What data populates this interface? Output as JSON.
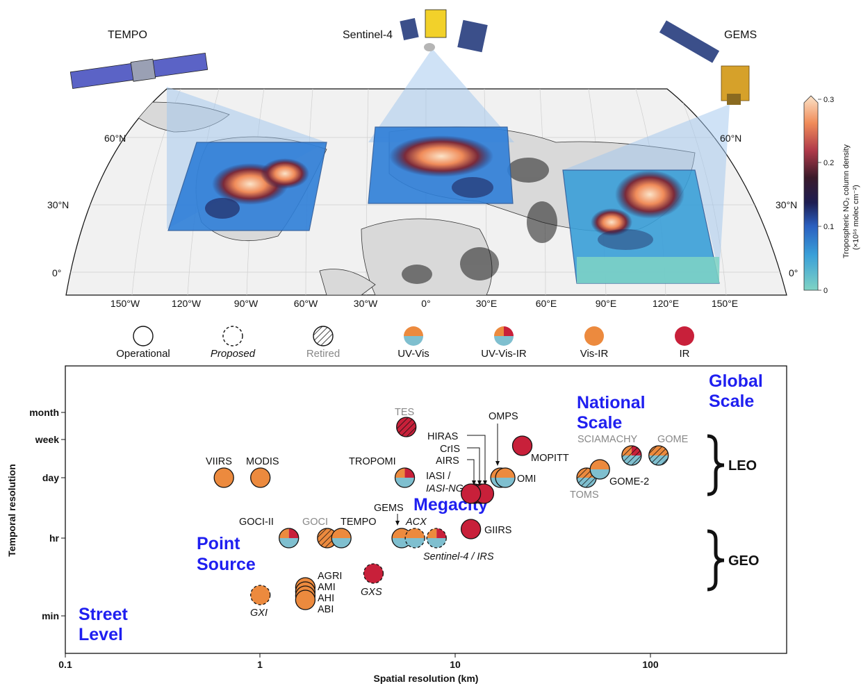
{
  "map": {
    "satellites": [
      {
        "name": "TEMPO"
      },
      {
        "name": "Sentinel-4"
      },
      {
        "name": "GEMS"
      }
    ],
    "lat_labels": [
      "60°N",
      "30°N",
      "0°"
    ],
    "lon_labels": [
      "150°W",
      "120°W",
      "90°W",
      "60°W",
      "30°W",
      "0°",
      "30°E",
      "60°E",
      "90°E",
      "120°E",
      "150°E"
    ],
    "colorbar": {
      "title": "Tropospheric NO₂ column density",
      "units": "(×10¹⁶ molec cm⁻²)",
      "ticks": [
        "0.3",
        "0.2",
        "0.1",
        "0"
      ],
      "colors": [
        "#7fd3c4",
        "#2f7fd8",
        "#1a1a5a",
        "#1a1a1a",
        "#b03a4a",
        "#f08c5a",
        "#fbe3c8"
      ]
    }
  },
  "legend": [
    {
      "label": "Operational",
      "style": "solid"
    },
    {
      "label": "Proposed",
      "style": "dashed"
    },
    {
      "label": "Retired",
      "style": "hatched"
    },
    {
      "label": "UV-Vis",
      "style": "uvvis"
    },
    {
      "label": "UV-Vis-IR",
      "style": "uvvisir"
    },
    {
      "label": "Vis-IR",
      "style": "visir"
    },
    {
      "label": "IR",
      "style": "ir"
    }
  ],
  "colors": {
    "orange": "#ec8a3e",
    "blue": "#7fbfcf",
    "red": "#c8203a",
    "scale_text": "#1f1ff0",
    "retired_text": "#888888"
  },
  "chart_data": {
    "type": "scatter",
    "xlabel": "Spatial resolution (km)",
    "ylabel": "Temporal resolution",
    "x_scale": "log",
    "xlim": [
      0.1,
      500
    ],
    "x_ticks": [
      "0.1",
      "1",
      "10",
      "100"
    ],
    "y_ticks": [
      "month",
      "week",
      "day",
      "hr",
      "min"
    ],
    "points": [
      {
        "name": "VIIRS",
        "x": 0.65,
        "y": "day",
        "band": "visir",
        "status": "operational"
      },
      {
        "name": "MODIS",
        "x": 1.0,
        "y": "day",
        "band": "visir",
        "status": "operational"
      },
      {
        "name": "TROPOMI",
        "x": 5.5,
        "y": "day",
        "band": "uvvisir",
        "status": "operational"
      },
      {
        "name": "TES",
        "x": 5.6,
        "y": "between month and week",
        "band": "ir",
        "status": "retired"
      },
      {
        "name": "HIRAS",
        "x": 12.5,
        "y": "day",
        "band": "ir",
        "status": "operational"
      },
      {
        "name": "CrIS",
        "x": 13.5,
        "y": "day",
        "band": "ir",
        "status": "operational"
      },
      {
        "name": "AIRS",
        "x": 14,
        "y": "day",
        "band": "ir",
        "status": "operational"
      },
      {
        "name": "IASI / IASI-NG",
        "x": 12,
        "y": "day",
        "band": "ir",
        "status": "operational"
      },
      {
        "name": "OMPS",
        "x": 17,
        "y": "day",
        "band": "uvvis",
        "status": "operational"
      },
      {
        "name": "OMI",
        "x": 18,
        "y": "day",
        "band": "uvvis",
        "status": "operational"
      },
      {
        "name": "MOPITT",
        "x": 22,
        "y": "week",
        "band": "ir",
        "status": "operational"
      },
      {
        "name": "TOMS",
        "x": 47,
        "y": "day",
        "band": "uvvis",
        "status": "retired"
      },
      {
        "name": "GOME-2",
        "x": 55,
        "y": "day",
        "band": "uvvis",
        "status": "operational"
      },
      {
        "name": "SCIAMACHY",
        "x": 80,
        "y": "week",
        "band": "uvvisir",
        "status": "retired"
      },
      {
        "name": "GOME",
        "x": 110,
        "y": "week",
        "band": "uvvis",
        "status": "retired"
      },
      {
        "name": "GOCI-II",
        "x": 1.4,
        "y": "hr",
        "band": "uvvisir",
        "status": "operational"
      },
      {
        "name": "GOCI",
        "x": 2.2,
        "y": "hr",
        "band": "visir",
        "status": "retired"
      },
      {
        "name": "TEMPO",
        "x": 2.6,
        "y": "hr",
        "band": "uvvis",
        "status": "operational"
      },
      {
        "name": "GEMS",
        "x": 5.3,
        "y": "hr",
        "band": "uvvis",
        "status": "operational"
      },
      {
        "name": "ACX",
        "x": 6.2,
        "y": "hr",
        "band": "uvvis",
        "status": "proposed"
      },
      {
        "name": "Sentinel-4 / IRS",
        "x": 8,
        "y": "hr",
        "band": "uvvisir",
        "status": "proposed"
      },
      {
        "name": "GIIRS",
        "x": 12,
        "y": "hr",
        "band": "ir",
        "status": "operational"
      },
      {
        "name": "GXS",
        "x": 3.8,
        "y": "between hr and min",
        "band": "ir",
        "status": "proposed"
      },
      {
        "name": "AGRI",
        "x": 1.7,
        "y": "between hr and min",
        "band": "visir",
        "status": "operational"
      },
      {
        "name": "AMI",
        "x": 1.7,
        "y": "between hr and min",
        "band": "visir",
        "status": "operational"
      },
      {
        "name": "AHI",
        "x": 1.7,
        "y": "between hr and min",
        "band": "visir",
        "status": "operational"
      },
      {
        "name": "ABI",
        "x": 1.7,
        "y": "between hr and min",
        "band": "visir",
        "status": "operational"
      },
      {
        "name": "GXI",
        "x": 1.0,
        "y": "between hr and min",
        "band": "visir",
        "status": "proposed"
      }
    ],
    "labels": {
      "VIIRS": "VIIRS",
      "MODIS": "MODIS",
      "TROPOMI": "TROPOMI",
      "TES": "TES",
      "HIRAS": "HIRAS",
      "CrIS": "CrIS",
      "AIRS": "AIRS",
      "IASI1": "IASI /",
      "IASI2": "IASI-NG",
      "OMPS": "OMPS",
      "OMI": "OMI",
      "MOPITT": "MOPITT",
      "TOMS": "TOMS",
      "GOME2": "GOME-2",
      "SCIAMACHY": "SCIAMACHY",
      "GOME": "GOME",
      "GOCIII": "GOCI-II",
      "GOCI": "GOCI",
      "TEMPO": "TEMPO",
      "GEMS": "GEMS",
      "ACX": "ACX",
      "S4": "Sentinel-4 / IRS",
      "GIIRS": "GIIRS",
      "GXS": "GXS",
      "AGRI": "AGRI",
      "AMI": "AMI",
      "AHI": "AHI",
      "ABI": "ABI",
      "GXI": "GXI"
    },
    "scales": {
      "global1": "Global",
      "global2": "Scale",
      "national1": "National",
      "national2": "Scale",
      "megacity": "Megacity",
      "point1": "Point",
      "point2": "Source",
      "street1": "Street",
      "street2": "Level"
    },
    "orbits": {
      "leo": "LEO",
      "geo": "GEO"
    }
  }
}
